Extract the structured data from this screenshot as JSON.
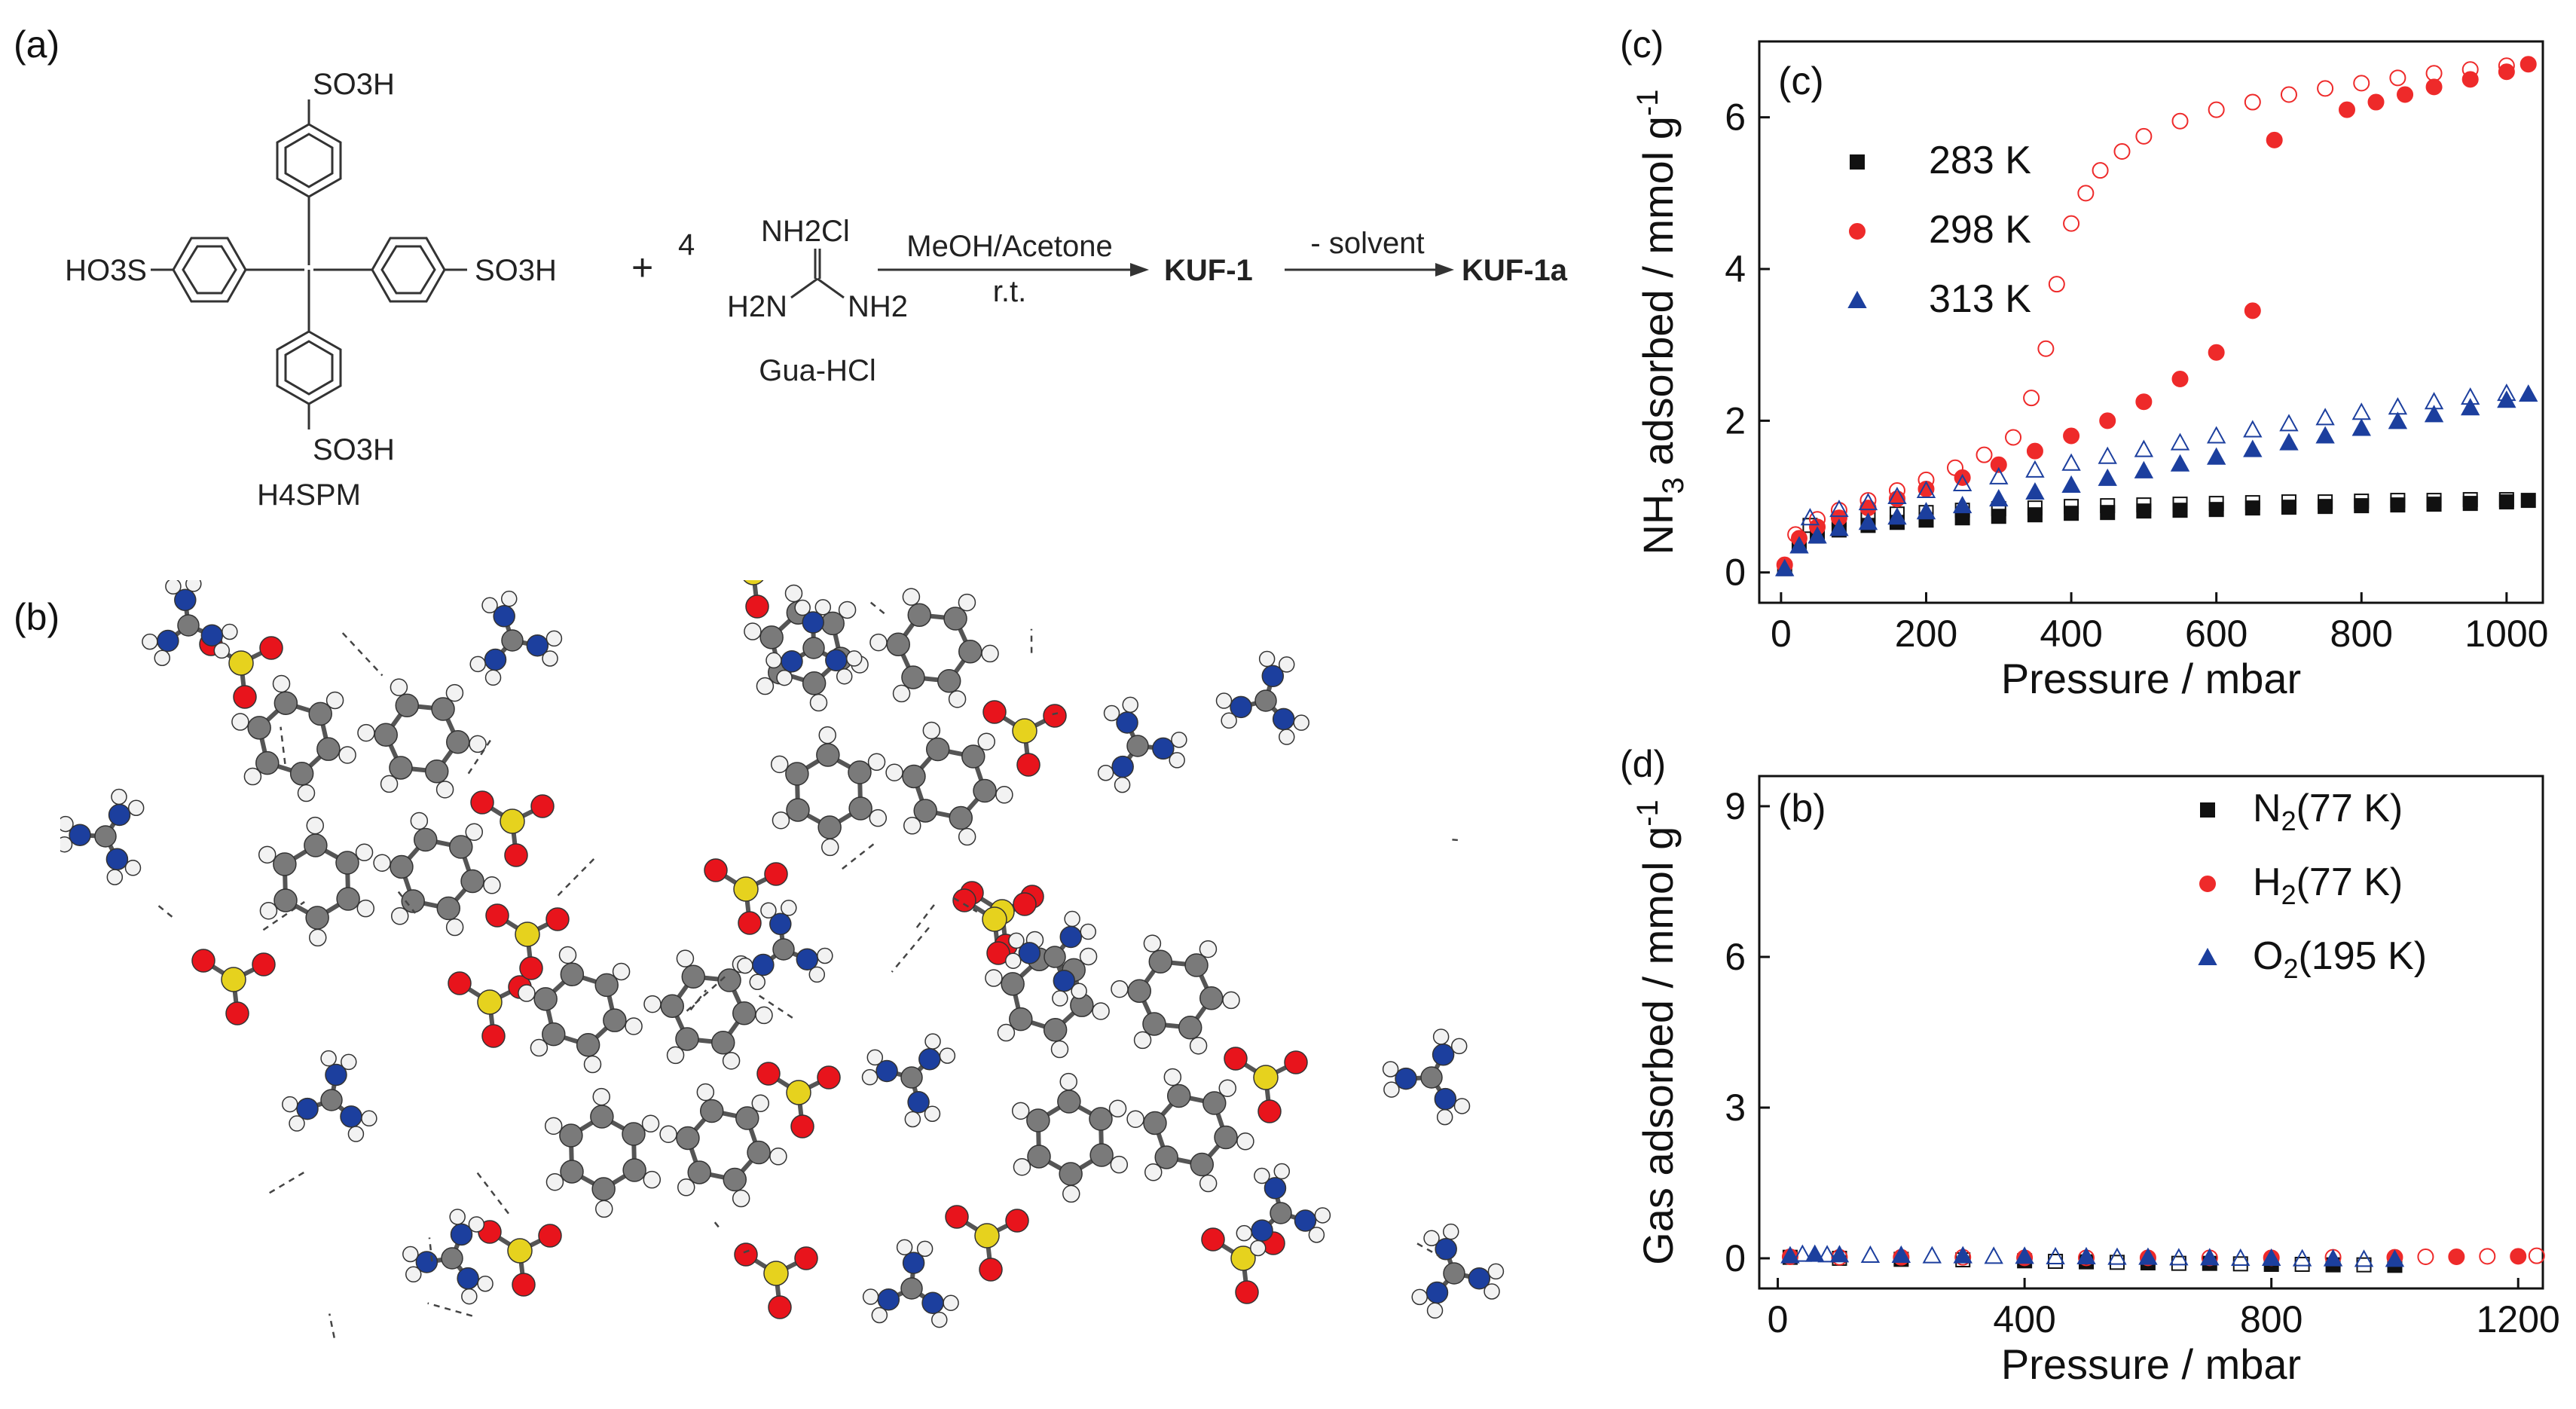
{
  "figure": {
    "panel_labels": {
      "a": "(a)",
      "b": "(b)",
      "c": "(c)",
      "d": "(d)"
    },
    "scheme": {
      "substituent": "SO3H",
      "left_group": "HO3S",
      "ligand_name": "H4SPM",
      "coefficient": "4",
      "plus": "+",
      "guanidine_top": "NH2Cl",
      "guanidine_left": "H2N",
      "guanidine_right": "NH2",
      "guanidine_name": "Gua-HCl",
      "arrow1_top": "MeOH/Acetone",
      "arrow1_bottom": "r.t.",
      "product1": "KUF-1",
      "arrow2_top": "- solvent",
      "product2": "KUF-1a"
    },
    "crystal_colors": {
      "carbon": "#7a7a7a",
      "hydrogen": "#f2f2f2",
      "oxygen": "#e8141c",
      "sulfur": "#e6d21e",
      "nitrogen": "#1c3f9e"
    }
  },
  "chart_data": [
    {
      "type": "scatter",
      "inset_label": "(c)",
      "xlabel": "Pressure / mbar",
      "ylabel": "NH3 adsorbed / mmol g-1",
      "xlim": [
        -30,
        1050
      ],
      "ylim": [
        -0.4,
        7.0
      ],
      "xticks": [
        0,
        200,
        400,
        600,
        800,
        1000
      ],
      "yticks": [
        0,
        2,
        4,
        6
      ],
      "legend_position": "top-left",
      "series": [
        {
          "name": "283 K",
          "color": "#111111",
          "marker": "square",
          "adsorption": {
            "x": [
              5,
              25,
              50,
              80,
              120,
              160,
              200,
              250,
              300,
              350,
              400,
              450,
              500,
              550,
              600,
              650,
              700,
              750,
              800,
              850,
              900,
              950,
              1000,
              1030
            ],
            "y": [
              0.05,
              0.35,
              0.48,
              0.56,
              0.62,
              0.66,
              0.69,
              0.72,
              0.74,
              0.76,
              0.78,
              0.79,
              0.81,
              0.82,
              0.83,
              0.85,
              0.86,
              0.87,
              0.88,
              0.89,
              0.9,
              0.91,
              0.93,
              0.95
            ]
          },
          "desorption": {
            "x": [
              40,
              80,
              120,
              160,
              200,
              250,
              300,
              350,
              400,
              450,
              500,
              550,
              600,
              650,
              700,
              750,
              800,
              850,
              900,
              950,
              1000
            ],
            "y": [
              0.62,
              0.7,
              0.74,
              0.77,
              0.79,
              0.82,
              0.84,
              0.85,
              0.87,
              0.88,
              0.89,
              0.9,
              0.91,
              0.92,
              0.93,
              0.93,
              0.94,
              0.95,
              0.95,
              0.96,
              0.96
            ]
          }
        },
        {
          "name": "298 K",
          "color": "#ee2a2a",
          "marker": "circle",
          "adsorption": {
            "x": [
              5,
              25,
              50,
              80,
              120,
              160,
              200,
              250,
              300,
              350,
              400,
              450,
              500,
              550,
              600,
              650,
              680,
              780,
              820,
              860,
              900,
              950,
              1000,
              1030
            ],
            "y": [
              0.1,
              0.45,
              0.6,
              0.72,
              0.85,
              0.97,
              1.1,
              1.25,
              1.42,
              1.6,
              1.8,
              2.0,
              2.25,
              2.55,
              2.9,
              3.45,
              5.7,
              6.1,
              6.2,
              6.3,
              6.4,
              6.5,
              6.6,
              6.7
            ]
          },
          "desorption": {
            "x": [
              20,
              50,
              80,
              120,
              160,
              200,
              240,
              280,
              320,
              345,
              365,
              380,
              400,
              420,
              440,
              470,
              500,
              550,
              600,
              650,
              700,
              750,
              800,
              850,
              900,
              950,
              1000
            ],
            "y": [
              0.5,
              0.7,
              0.82,
              0.95,
              1.08,
              1.22,
              1.38,
              1.55,
              1.78,
              2.3,
              2.95,
              3.8,
              4.6,
              5.0,
              5.3,
              5.55,
              5.75,
              5.95,
              6.1,
              6.2,
              6.3,
              6.38,
              6.45,
              6.52,
              6.58,
              6.63,
              6.68
            ]
          }
        },
        {
          "name": "313 K",
          "color": "#1c3f9e",
          "marker": "triangle",
          "adsorption": {
            "x": [
              5,
              25,
              50,
              80,
              120,
              160,
              200,
              250,
              300,
              350,
              400,
              450,
              500,
              550,
              600,
              650,
              700,
              750,
              800,
              850,
              900,
              950,
              1000,
              1030
            ],
            "y": [
              0.05,
              0.35,
              0.48,
              0.58,
              0.66,
              0.73,
              0.8,
              0.88,
              0.97,
              1.06,
              1.15,
              1.24,
              1.34,
              1.43,
              1.52,
              1.62,
              1.71,
              1.8,
              1.9,
              1.99,
              2.08,
              2.17,
              2.27,
              2.35
            ]
          },
          "desorption": {
            "x": [
              40,
              80,
              120,
              160,
              200,
              250,
              300,
              350,
              400,
              450,
              500,
              550,
              600,
              650,
              700,
              750,
              800,
              850,
              900,
              950,
              1000
            ],
            "y": [
              0.72,
              0.83,
              0.92,
              1.0,
              1.08,
              1.17,
              1.26,
              1.35,
              1.44,
              1.53,
              1.62,
              1.71,
              1.8,
              1.88,
              1.96,
              2.04,
              2.11,
              2.18,
              2.25,
              2.31,
              2.36
            ]
          }
        }
      ]
    },
    {
      "type": "scatter",
      "inset_label": "(b)",
      "xlabel": "Pressure / mbar",
      "ylabel": "Gas adsorbed / mmol g-1",
      "xlim": [
        -30,
        1240
      ],
      "ylim": [
        -0.6,
        9.6
      ],
      "xticks": [
        0,
        400,
        800,
        1200
      ],
      "yticks": [
        0,
        3,
        6,
        9
      ],
      "legend_position": "top-right",
      "series": [
        {
          "name": "N2(77 K)",
          "color": "#111111",
          "marker": "square",
          "x": [
            20,
            100,
            200,
            300,
            400,
            450,
            500,
            550,
            600,
            650,
            700,
            750,
            800,
            850,
            900,
            950,
            1000
          ],
          "y": [
            0.02,
            0.0,
            -0.02,
            -0.03,
            -0.05,
            -0.06,
            -0.07,
            -0.08,
            -0.09,
            -0.1,
            -0.1,
            -0.11,
            -0.12,
            -0.12,
            -0.13,
            -0.13,
            -0.14
          ]
        },
        {
          "name": "H2(77 K)",
          "color": "#ee2a2a",
          "marker": "circle",
          "x": [
            20,
            100,
            200,
            300,
            400,
            500,
            600,
            700,
            800,
            900,
            1000,
            1050,
            1100,
            1150,
            1200,
            1230
          ],
          "y": [
            0.03,
            0.02,
            0.02,
            0.02,
            0.01,
            0.01,
            0.01,
            0.01,
            0.01,
            0.02,
            0.02,
            0.03,
            0.03,
            0.04,
            0.04,
            0.05
          ]
        },
        {
          "name": "O2(195 K)",
          "color": "#1c3f9e",
          "marker": "triangle",
          "x": [
            20,
            40,
            60,
            80,
            100,
            150,
            200,
            250,
            300,
            350,
            400,
            450,
            500,
            550,
            600,
            650,
            700,
            750,
            800,
            850,
            900,
            950,
            1000
          ],
          "y": [
            0.05,
            0.08,
            0.08,
            0.07,
            0.07,
            0.06,
            0.06,
            0.05,
            0.05,
            0.04,
            0.04,
            0.03,
            0.03,
            0.02,
            0.02,
            0.01,
            0.01,
            0.0,
            0.0,
            -0.01,
            -0.01,
            -0.02,
            -0.02
          ]
        }
      ]
    }
  ]
}
